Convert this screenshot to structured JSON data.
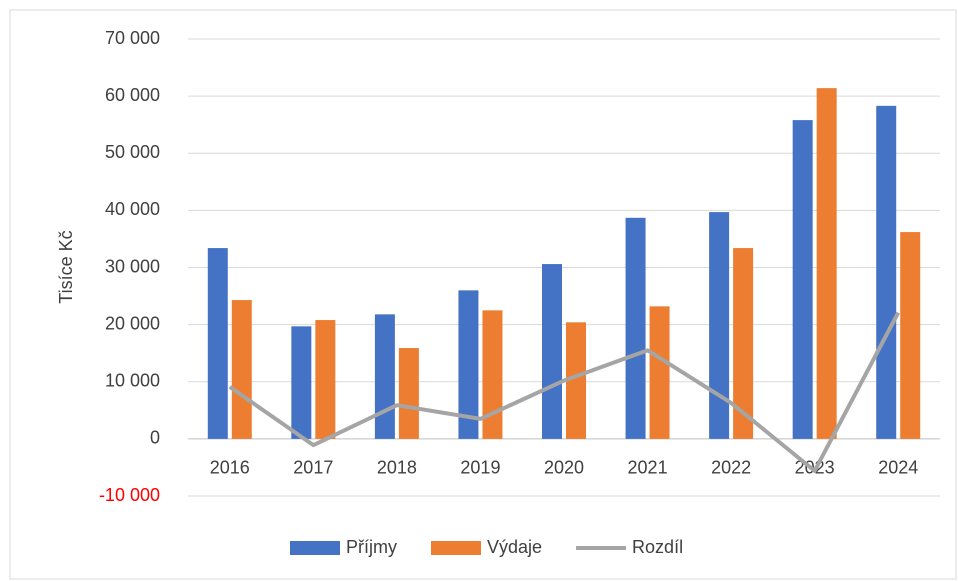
{
  "chart_data": {
    "type": "bar_line",
    "y_label": "Tisíce Kč",
    "categories": [
      "2016",
      "2017",
      "2018",
      "2019",
      "2020",
      "2021",
      "2022",
      "2023",
      "2024"
    ],
    "series": [
      {
        "name": "Příjmy",
        "type": "bar",
        "color": "#4472c4",
        "values": [
          33400,
          19700,
          21800,
          26000,
          30600,
          38700,
          39700,
          55800,
          58300
        ]
      },
      {
        "name": "Výdaje",
        "type": "bar",
        "color": "#ed7d31",
        "values": [
          24300,
          20800,
          15900,
          22500,
          20400,
          23200,
          33400,
          61400,
          36200
        ]
      },
      {
        "name": "Rozdíl",
        "type": "line",
        "color": "#a5a5a5",
        "values": [
          9100,
          -1100,
          5900,
          3500,
          10200,
          15500,
          6300,
          -5600,
          22100
        ]
      }
    ],
    "ylim": [
      -10000,
      70000
    ],
    "yticks": [
      {
        "value": -10000,
        "label": "-10 000"
      },
      0,
      {
        "value": 10000,
        "label": "10 000"
      },
      {
        "value": 20000,
        "label": "20 000"
      },
      {
        "value": 30000,
        "label": "30 000"
      },
      {
        "value": 40000,
        "label": "40 000"
      },
      {
        "value": 50000,
        "label": "50 000"
      },
      {
        "value": 60000,
        "label": "60 000"
      },
      {
        "value": 70000,
        "label": "70 000"
      }
    ],
    "negative_tick_color": "#ff0000",
    "grid": true,
    "legend": "bottom"
  }
}
